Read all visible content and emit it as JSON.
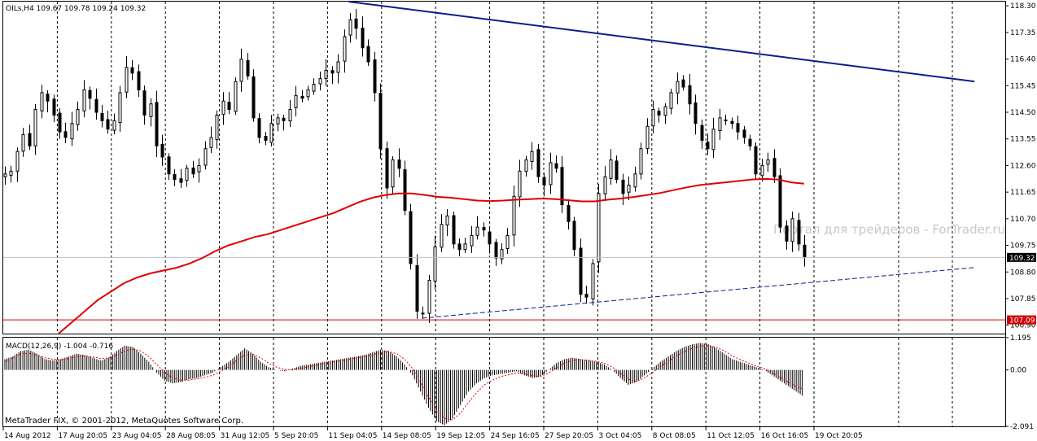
{
  "header": {
    "symbol_info": "OILs,H4  109.67 109.78 109.24 109.32"
  },
  "indicator": {
    "macd_label": "MACD(12,26,9) -1.004 -0.716"
  },
  "footer": {
    "copyright": "MetaTrader FIX, © 2001-2012, MetaQuotes Software Corp."
  },
  "watermark": "Портал для трейдеров - ForTrader.ru",
  "colors": {
    "background": "#ffffff",
    "candles": "#000000",
    "grid": "#000000",
    "ma": "#e00000",
    "trendline": "#0a1e8c",
    "support": "#d00000",
    "price_line": "#c0c0c0",
    "label_bg": "#000000",
    "support_label_bg": "#d00000",
    "macd_signal": "#e00000"
  },
  "chart_data": {
    "type": "candlestick",
    "timeframe": "H4",
    "price_axis": {
      "ticks": [
        "118.30",
        "117.35",
        "116.40",
        "115.45",
        "114.50",
        "113.55",
        "112.60",
        "111.65",
        "110.70",
        "109.75",
        "108.80",
        "107.85",
        "106.90"
      ],
      "range": [
        106.6,
        118.45
      ]
    },
    "time_axis": {
      "labels": [
        "14 Aug 2012",
        "17 Aug 20:05",
        "23 Aug 04:05",
        "28 Aug 08:05",
        "31 Aug 12:05",
        "5 Sep 20:05",
        "11 Sep 04:05",
        "14 Sep 08:05",
        "19 Sep 12:05",
        "24 Sep 16:05",
        "27 Sep 20:05",
        "3 Oct 04:05",
        "8 Oct 08:05",
        "11 Oct 12:05",
        "16 Oct 16:05",
        "19 Oct 20:05"
      ]
    },
    "current_price": {
      "value": 109.32,
      "label": "109.32"
    },
    "support_line": {
      "value": 107.09,
      "label": "107.09"
    },
    "price_path": [
      112.3,
      112.4,
      113.1,
      113.7,
      113.3,
      114.6,
      115.2,
      114.9,
      114.4,
      113.8,
      113.6,
      114.1,
      114.6,
      115.3,
      115.0,
      114.5,
      114.2,
      113.9,
      114.2,
      115.2,
      116.1,
      115.9,
      115.3,
      114.4,
      114.8,
      113.3,
      112.9,
      112.3,
      112.1,
      112.0,
      112.5,
      112.3,
      112.6,
      113.2,
      113.6,
      114.4,
      114.9,
      114.6,
      115.6,
      116.4,
      115.8,
      114.3,
      113.6,
      113.5,
      114.1,
      114.3,
      114.2,
      114.6,
      115.1,
      115.0,
      115.3,
      115.5,
      115.7,
      116.0,
      115.9,
      116.3,
      117.2,
      117.8,
      117.5,
      116.8,
      116.3,
      115.2,
      113.2,
      111.8,
      112.8,
      112.5,
      111.0,
      109.1,
      107.4,
      107.3,
      108.5,
      109.7,
      110.5,
      110.8,
      109.8,
      109.6,
      109.8,
      110.1,
      110.4,
      110.3,
      109.8,
      109.3,
      109.6,
      110.1,
      111.5,
      112.4,
      112.8,
      113.1,
      112.2,
      111.9,
      112.7,
      112.5,
      111.2,
      110.6,
      109.6,
      108.0,
      107.9,
      109.1,
      111.6,
      112.2,
      112.8,
      112.1,
      111.6,
      111.9,
      112.3,
      113.2,
      114.0,
      114.6,
      114.4,
      114.7,
      115.2,
      115.6,
      115.4,
      114.8,
      114.1,
      113.5,
      113.2,
      113.9,
      114.3,
      114.2,
      114.1,
      113.8,
      113.6,
      113.3,
      112.3,
      112.6,
      112.8,
      112.2,
      110.4,
      109.9,
      110.7,
      109.8,
      109.32
    ],
    "moving_average": [
      106.6,
      107.0,
      107.4,
      107.8,
      108.1,
      108.4,
      108.6,
      108.75,
      108.85,
      108.95,
      109.1,
      109.3,
      109.55,
      109.75,
      109.9,
      110.05,
      110.15,
      110.3,
      110.45,
      110.6,
      110.75,
      110.9,
      111.1,
      111.3,
      111.45,
      111.55,
      111.6,
      111.6,
      111.55,
      111.48,
      111.45,
      111.4,
      111.35,
      111.33,
      111.35,
      111.38,
      111.4,
      111.42,
      111.4,
      111.36,
      111.32,
      111.32,
      111.38,
      111.42,
      111.48,
      111.55,
      111.62,
      111.72,
      111.82,
      111.9,
      111.95,
      112.0,
      112.05,
      112.1,
      112.12,
      112.1,
      112.0,
      111.95
    ],
    "trendlines": [
      {
        "name": "upper resistance",
        "from": {
          "time_index": 0.345,
          "price": 118.45
        },
        "to": {
          "time_index": 0.97,
          "price": 115.6
        }
      },
      {
        "name": "lower support",
        "from": {
          "time_index": 0.418,
          "price": 107.15
        },
        "to": {
          "time_index": 0.97,
          "price": 108.96
        }
      }
    ],
    "macd": {
      "params": "12,26,9",
      "values": {
        "main": -1.004,
        "signal": -0.716
      },
      "ticks": [
        "1.195",
        "0.00",
        "-2.091"
      ],
      "range": [
        -2.091,
        1.195
      ],
      "histogram": [
        0.4,
        0.5,
        0.7,
        0.75,
        0.6,
        0.4,
        0.35,
        0.4,
        0.5,
        0.6,
        0.55,
        0.45,
        0.35,
        0.45,
        0.7,
        0.9,
        0.85,
        0.6,
        0.3,
        -0.1,
        -0.4,
        -0.5,
        -0.45,
        -0.35,
        -0.3,
        -0.2,
        -0.1,
        0.1,
        0.3,
        0.55,
        0.8,
        0.6,
        0.3,
        0.1,
        0.0,
        -0.05,
        0.05,
        0.15,
        0.2,
        0.25,
        0.3,
        0.35,
        0.4,
        0.45,
        0.5,
        0.55,
        0.65,
        0.75,
        0.7,
        0.5,
        0.2,
        -0.2,
        -0.8,
        -1.4,
        -1.9,
        -2.05,
        -1.8,
        -1.3,
        -0.8,
        -0.5,
        -0.3,
        -0.2,
        -0.15,
        -0.1,
        -0.05,
        -0.2,
        -0.3,
        -0.25,
        0.0,
        0.25,
        0.4,
        0.45,
        0.4,
        0.35,
        0.3,
        0.2,
        0.0,
        -0.3,
        -0.55,
        -0.45,
        -0.2,
        0.05,
        0.3,
        0.5,
        0.7,
        0.85,
        0.95,
        1.0,
        0.95,
        0.8,
        0.6,
        0.4,
        0.3,
        0.2,
        0.1,
        0.0,
        -0.2,
        -0.4,
        -0.6,
        -0.8,
        -1.0
      ],
      "signal_line": [
        0.3,
        0.45,
        0.6,
        0.62,
        0.55,
        0.45,
        0.4,
        0.38,
        0.42,
        0.5,
        0.52,
        0.48,
        0.42,
        0.44,
        0.55,
        0.7,
        0.78,
        0.7,
        0.5,
        0.2,
        -0.1,
        -0.3,
        -0.38,
        -0.38,
        -0.33,
        -0.28,
        -0.2,
        -0.05,
        0.12,
        0.35,
        0.55,
        0.58,
        0.45,
        0.25,
        0.1,
        0.02,
        0.0,
        0.06,
        0.12,
        0.18,
        0.24,
        0.29,
        0.34,
        0.39,
        0.44,
        0.5,
        0.56,
        0.64,
        0.68,
        0.6,
        0.4,
        0.05,
        -0.45,
        -1.0,
        -1.5,
        -1.8,
        -1.85,
        -1.6,
        -1.2,
        -0.85,
        -0.55,
        -0.38,
        -0.25,
        -0.18,
        -0.12,
        -0.15,
        -0.22,
        -0.24,
        -0.12,
        0.08,
        0.25,
        0.35,
        0.38,
        0.36,
        0.32,
        0.25,
        0.1,
        -0.12,
        -0.35,
        -0.42,
        -0.3,
        -0.1,
        0.12,
        0.32,
        0.52,
        0.68,
        0.8,
        0.88,
        0.9,
        0.84,
        0.7,
        0.52,
        0.38,
        0.26,
        0.15,
        0.05,
        -0.1,
        -0.28,
        -0.45,
        -0.62,
        -0.72
      ]
    }
  }
}
